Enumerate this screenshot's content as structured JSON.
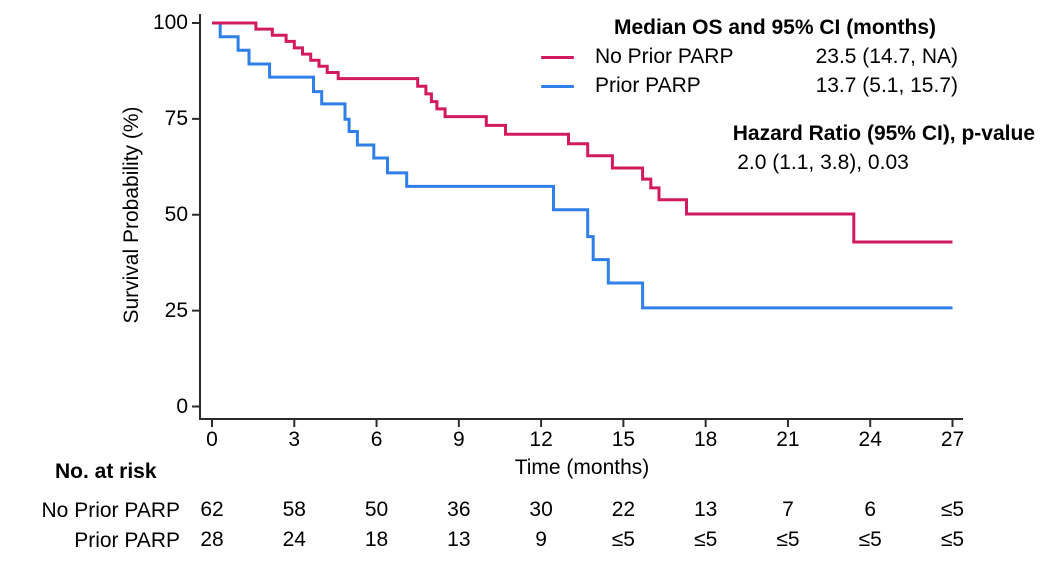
{
  "figure": {
    "ylabel": "Survival Probability (%)",
    "xlabel": "Time (months)"
  },
  "legend": {
    "title": "Median OS and 95% CI (months)",
    "rows": [
      {
        "label": "No Prior PARP",
        "value": "23.5 (14.7, NA)",
        "color": "#D21A5E",
        "swatch_icon": "line-swatch"
      },
      {
        "label": "Prior PARP",
        "value": "13.7 (5.1, 15.7)",
        "color": "#2E7FE8",
        "swatch_icon": "line-swatch"
      }
    ]
  },
  "hazard": {
    "title": "Hazard Ratio (95% CI), p-value",
    "value": "2.0 (1.1, 3.8), 0.03"
  },
  "risk_table": {
    "header": "No. at risk",
    "rows": [
      {
        "label": "No Prior PARP",
        "counts": [
          "62",
          "58",
          "50",
          "36",
          "30",
          "22",
          "13",
          "7",
          "6",
          "≤5"
        ]
      },
      {
        "label": "Prior PARP",
        "counts": [
          "28",
          "24",
          "18",
          "13",
          "9",
          "≤5",
          "≤5",
          "≤5",
          "≤5",
          "≤5"
        ]
      }
    ]
  },
  "chart_data": {
    "type": "line",
    "subtype": "kaplan-meier-step",
    "title": "",
    "xlabel": "Time (months)",
    "ylabel": "Survival Probability (%)",
    "xlim": [
      0,
      27
    ],
    "ylim": [
      0,
      100
    ],
    "xticks": [
      0,
      3,
      6,
      9,
      12,
      15,
      18,
      21,
      24,
      27
    ],
    "yticks": [
      0,
      25,
      50,
      75,
      100
    ],
    "grid": false,
    "legend_position": "top-right",
    "axis_color": "#2b2b2b",
    "series": [
      {
        "name": "Prior PARP",
        "color": "#2E7FE8",
        "median_os": "13.7 (5.1, 15.7)",
        "points": [
          [
            0,
            100
          ],
          [
            0.3,
            96.4
          ],
          [
            0.95,
            92.9
          ],
          [
            1.35,
            89.3
          ],
          [
            2.1,
            85.9
          ],
          [
            3.7,
            82.1
          ],
          [
            4.0,
            78.9
          ],
          [
            4.85,
            74.9
          ],
          [
            5.0,
            71.7
          ],
          [
            5.3,
            68.2
          ],
          [
            5.9,
            64.8
          ],
          [
            6.4,
            60.9
          ],
          [
            7.1,
            57.4
          ],
          [
            12.45,
            51.3
          ],
          [
            13.7,
            44.3
          ],
          [
            13.9,
            38.3
          ],
          [
            14.45,
            32.2
          ],
          [
            15.7,
            25.7
          ],
          [
            27,
            25.7
          ]
        ]
      },
      {
        "name": "No Prior PARP",
        "color": "#D21A5E",
        "median_os": "23.5 (14.7, NA)",
        "points": [
          [
            0,
            100
          ],
          [
            1.6,
            98.4
          ],
          [
            2.2,
            96.8
          ],
          [
            2.7,
            95.2
          ],
          [
            3.0,
            93.5
          ],
          [
            3.3,
            91.9
          ],
          [
            3.6,
            90.3
          ],
          [
            3.9,
            88.7
          ],
          [
            4.2,
            87.1
          ],
          [
            4.6,
            85.5
          ],
          [
            7.5,
            83.5
          ],
          [
            7.8,
            81.5
          ],
          [
            8.0,
            79.5
          ],
          [
            8.2,
            77.6
          ],
          [
            8.5,
            75.6
          ],
          [
            10.0,
            73.3
          ],
          [
            10.7,
            71.0
          ],
          [
            13.0,
            68.5
          ],
          [
            13.7,
            65.4
          ],
          [
            14.6,
            62.2
          ],
          [
            15.7,
            59.3
          ],
          [
            16.0,
            57.0
          ],
          [
            16.3,
            53.9
          ],
          [
            17.3,
            50.2
          ],
          [
            23.4,
            42.9
          ],
          [
            27,
            42.9
          ]
        ]
      }
    ],
    "annotations": [
      "Median OS and 95% CI (months)",
      "Hazard Ratio (95% CI), p-value",
      "2.0 (1.1, 3.8), 0.03"
    ]
  }
}
